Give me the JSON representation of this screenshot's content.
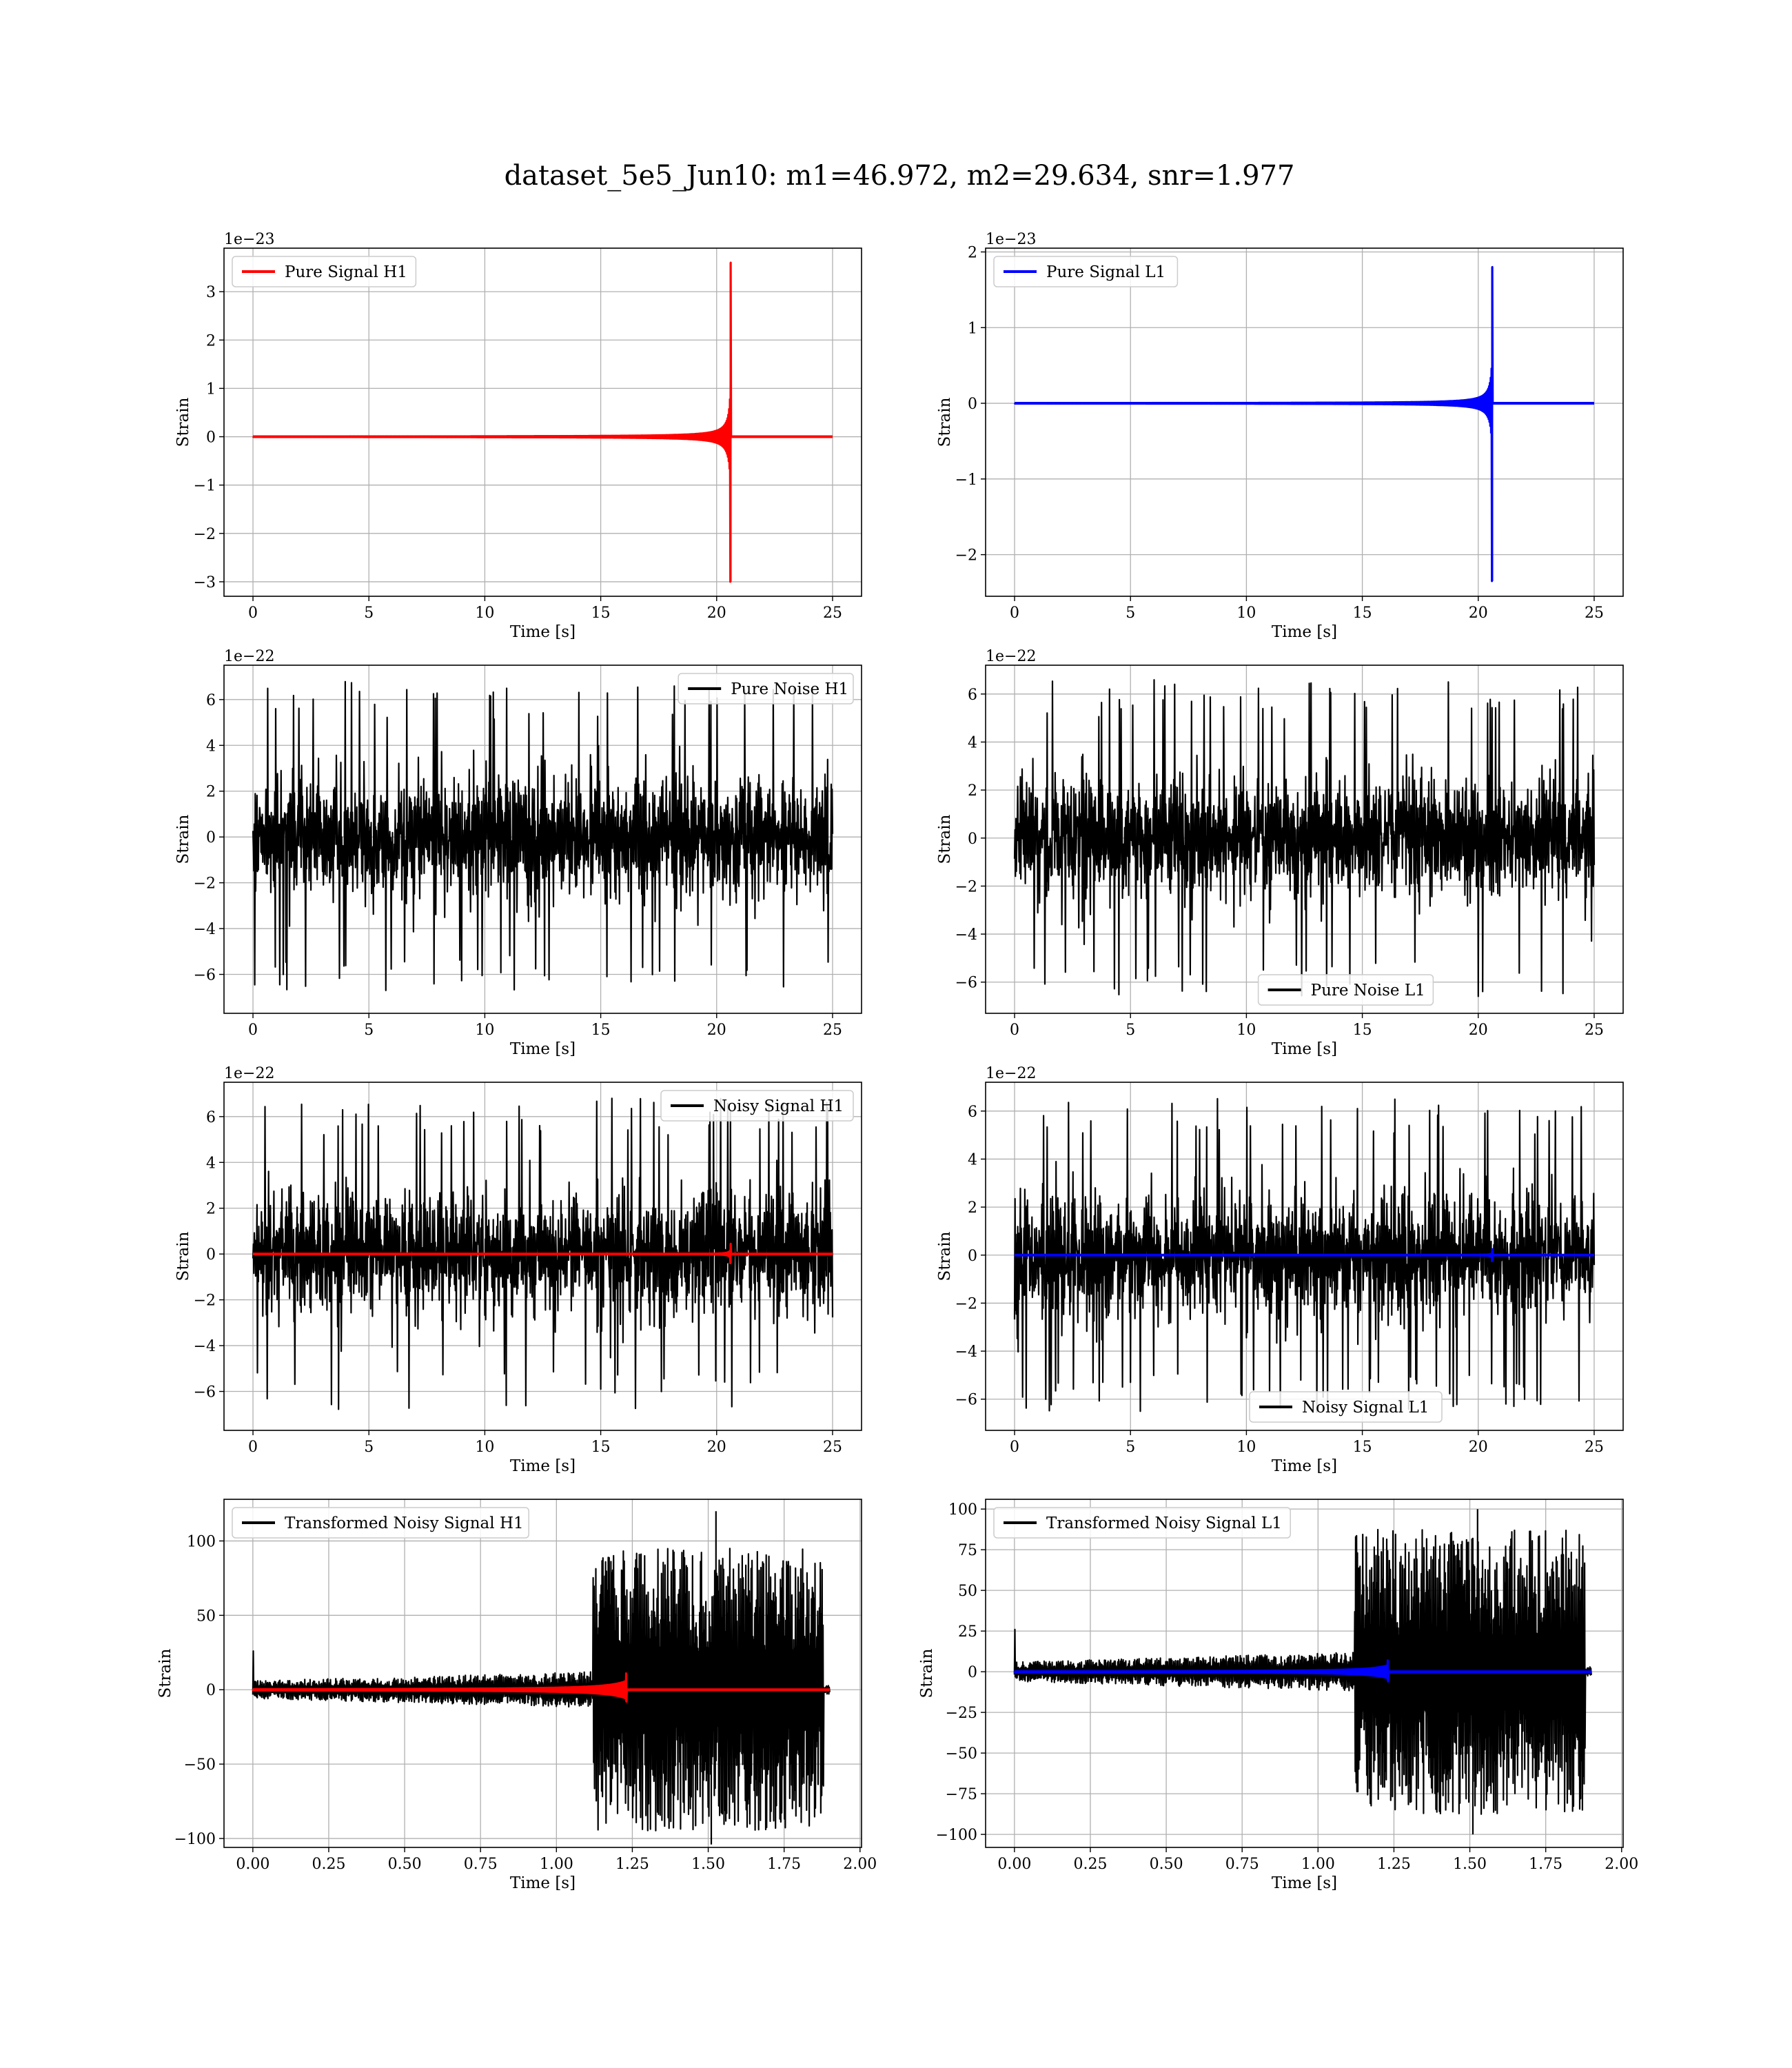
{
  "figure": {
    "suptitle": "dataset_5e5_Jun10: m1=46.972, m2=29.634, snr=1.977"
  },
  "colors": {
    "h1": "#ff0000",
    "l1": "#0000ff",
    "noise": "#000000",
    "grid": "#b0b0b0"
  },
  "chart_data": [
    {
      "type": "line",
      "panel": "pure-signal-h1",
      "xlabel": "Time [s]",
      "ylabel": "Strain",
      "offset_text": "1e−23",
      "xlim": [
        -1.25,
        26.25
      ],
      "ylim": [
        -3.3,
        3.9
      ],
      "xticks": [
        0,
        5,
        10,
        15,
        20,
        25
      ],
      "xtick_labels": [
        "0",
        "5",
        "10",
        "15",
        "20",
        "25"
      ],
      "yticks": [
        -3,
        -2,
        -1,
        0,
        1,
        2,
        3
      ],
      "ytick_labels": [
        "−3",
        "−2",
        "−1",
        "0",
        "1",
        "2",
        "3"
      ],
      "grid": true,
      "legend_position": "upper left",
      "series": [
        {
          "name": "Pure Signal H1",
          "kind": "chirp",
          "color": "#ff0000",
          "duration": 25,
          "merger": 20.6,
          "amp": 1.1,
          "peak_pos": 3.6,
          "peak_neg": -3.0,
          "noise_amp": 0,
          "in_legend": true
        }
      ]
    },
    {
      "type": "line",
      "panel": "pure-signal-l1",
      "xlabel": "Time [s]",
      "ylabel": "Strain",
      "offset_text": "1e−23",
      "xlim": [
        -1.25,
        26.25
      ],
      "ylim": [
        -2.55,
        2.05
      ],
      "xticks": [
        0,
        5,
        10,
        15,
        20,
        25
      ],
      "xtick_labels": [
        "0",
        "5",
        "10",
        "15",
        "20",
        "25"
      ],
      "yticks": [
        -2,
        -1,
        0,
        1,
        2
      ],
      "ytick_labels": [
        "−2",
        "−1",
        "0",
        "1",
        "2"
      ],
      "grid": true,
      "legend_position": "upper left",
      "series": [
        {
          "name": "Pure Signal L1",
          "kind": "chirp",
          "color": "#0000ff",
          "duration": 25,
          "merger": 20.6,
          "amp": 0.65,
          "peak_pos": 1.8,
          "peak_neg": -2.35,
          "noise_amp": 0,
          "in_legend": true
        }
      ]
    },
    {
      "type": "line",
      "panel": "pure-noise-h1",
      "xlabel": "Time [s]",
      "ylabel": "Strain",
      "offset_text": "1e−22",
      "xlim": [
        -1.25,
        26.25
      ],
      "ylim": [
        -7.7,
        7.5
      ],
      "xticks": [
        0,
        5,
        10,
        15,
        20,
        25
      ],
      "xtick_labels": [
        "0",
        "5",
        "10",
        "15",
        "20",
        "25"
      ],
      "yticks": [
        -6,
        -4,
        -2,
        0,
        2,
        4,
        6
      ],
      "ytick_labels": [
        "−6",
        "−4",
        "−2",
        "0",
        "2",
        "4",
        "6"
      ],
      "grid": true,
      "legend_position": "upper right",
      "series": [
        {
          "name": "Pure Noise H1",
          "kind": "noise",
          "color": "#000000",
          "duration": 25,
          "noise_amp": 6.8,
          "in_legend": true
        }
      ]
    },
    {
      "type": "line",
      "panel": "pure-noise-l1",
      "xlabel": "Time [s]",
      "ylabel": "Strain",
      "offset_text": "1e−22",
      "xlim": [
        -1.25,
        26.25
      ],
      "ylim": [
        -7.3,
        7.2
      ],
      "xticks": [
        0,
        5,
        10,
        15,
        20,
        25
      ],
      "xtick_labels": [
        "0",
        "5",
        "10",
        "15",
        "20",
        "25"
      ],
      "yticks": [
        -6,
        -4,
        -2,
        0,
        2,
        4,
        6
      ],
      "ytick_labels": [
        "−6",
        "−4",
        "−2",
        "0",
        "2",
        "4",
        "6"
      ],
      "grid": true,
      "legend_position": "lower center",
      "series": [
        {
          "name": "Pure Noise L1",
          "kind": "noise",
          "color": "#000000",
          "duration": 25,
          "noise_amp": 6.6,
          "in_legend": true
        }
      ]
    },
    {
      "type": "line",
      "panel": "noisy-signal-h1",
      "xlabel": "Time [s]",
      "ylabel": "Strain",
      "offset_text": "1e−22",
      "xlim": [
        -1.25,
        26.25
      ],
      "ylim": [
        -7.7,
        7.5
      ],
      "xticks": [
        0,
        5,
        10,
        15,
        20,
        25
      ],
      "xtick_labels": [
        "0",
        "5",
        "10",
        "15",
        "20",
        "25"
      ],
      "yticks": [
        -6,
        -4,
        -2,
        0,
        2,
        4,
        6
      ],
      "ytick_labels": [
        "−6",
        "−4",
        "−2",
        "0",
        "2",
        "4",
        "6"
      ],
      "grid": true,
      "legend_position": "upper right",
      "series": [
        {
          "name": "Noisy Signal H1",
          "kind": "noise",
          "color": "#000000",
          "duration": 25,
          "noise_amp": 6.8,
          "in_legend": true
        },
        {
          "name": "",
          "kind": "chirp",
          "color": "#ff0000",
          "duration": 25,
          "merger": 20.6,
          "amp": 0.2,
          "peak_pos": 0.45,
          "peak_neg": -0.4,
          "noise_amp": 0,
          "in_legend": false
        }
      ]
    },
    {
      "type": "line",
      "panel": "noisy-signal-l1",
      "xlabel": "Time [s]",
      "ylabel": "Strain",
      "offset_text": "1e−22",
      "xlim": [
        -1.25,
        26.25
      ],
      "ylim": [
        -7.3,
        7.2
      ],
      "xticks": [
        0,
        5,
        10,
        15,
        20,
        25
      ],
      "xtick_labels": [
        "0",
        "5",
        "10",
        "15",
        "20",
        "25"
      ],
      "yticks": [
        -6,
        -4,
        -2,
        0,
        2,
        4,
        6
      ],
      "ytick_labels": [
        "−6",
        "−4",
        "−2",
        "0",
        "2",
        "4",
        "6"
      ],
      "grid": true,
      "legend_position": "lower center",
      "series": [
        {
          "name": "Noisy Signal L1",
          "kind": "noise",
          "color": "#000000",
          "duration": 25,
          "noise_amp": 6.6,
          "in_legend": true
        },
        {
          "name": "",
          "kind": "chirp",
          "color": "#0000ff",
          "duration": 25,
          "merger": 20.6,
          "amp": 0.1,
          "peak_pos": 0.25,
          "peak_neg": -0.25,
          "noise_amp": 0,
          "in_legend": false
        }
      ]
    },
    {
      "type": "line",
      "panel": "transformed-noisy-signal-h1",
      "xlabel": "Time [s]",
      "ylabel": "Strain",
      "offset_text": "",
      "xlim": [
        -0.095,
        2.005
      ],
      "ylim": [
        -106,
        128
      ],
      "xticks": [
        0,
        0.25,
        0.5,
        0.75,
        1.0,
        1.25,
        1.5,
        1.75,
        2.0
      ],
      "xtick_labels": [
        "0.00",
        "0.25",
        "0.50",
        "0.75",
        "1.00",
        "1.25",
        "1.50",
        "1.75",
        "2.00"
      ],
      "yticks": [
        -100,
        -50,
        0,
        50,
        100
      ],
      "ytick_labels": [
        "−100",
        "−50",
        "0",
        "50",
        "100"
      ],
      "grid": true,
      "legend_position": "upper left",
      "series": [
        {
          "name": "Transformed Noisy Signal H1",
          "kind": "whitened",
          "color": "#000000",
          "duration": 1.9,
          "jump_at": 1.12,
          "pre_amp": 10,
          "post_amp": 95,
          "peak": 120,
          "trough": -104,
          "in_legend": true
        },
        {
          "name": "",
          "kind": "chirp",
          "color": "#ff0000",
          "duration": 1.9,
          "merger": 1.23,
          "amp": 6,
          "peak_pos": 11,
          "peak_neg": -8,
          "noise_amp": 0,
          "in_legend": false
        }
      ]
    },
    {
      "type": "line",
      "panel": "transformed-noisy-signal-l1",
      "xlabel": "Time [s]",
      "ylabel": "Strain",
      "offset_text": "",
      "xlim": [
        -0.095,
        2.005
      ],
      "ylim": [
        -108,
        106
      ],
      "xticks": [
        0,
        0.25,
        0.5,
        0.75,
        1.0,
        1.25,
        1.5,
        1.75,
        2.0
      ],
      "xtick_labels": [
        "0.00",
        "0.25",
        "0.50",
        "0.75",
        "1.00",
        "1.25",
        "1.50",
        "1.75",
        "2.00"
      ],
      "yticks": [
        -100,
        -75,
        -50,
        -25,
        0,
        25,
        50,
        75,
        100
      ],
      "ytick_labels": [
        "−100",
        "−75",
        "−50",
        "−25",
        "0",
        "25",
        "50",
        "75",
        "100"
      ],
      "grid": true,
      "legend_position": "upper left",
      "series": [
        {
          "name": "Transformed Noisy Signal L1",
          "kind": "whitened",
          "color": "#000000",
          "duration": 1.9,
          "jump_at": 1.12,
          "pre_amp": 10,
          "post_amp": 88,
          "peak": 100,
          "trough": -100,
          "in_legend": true
        },
        {
          "name": "",
          "kind": "chirp",
          "color": "#0000ff",
          "duration": 1.9,
          "merger": 1.23,
          "amp": 4,
          "peak_pos": 7,
          "peak_neg": -6,
          "noise_amp": 0,
          "in_legend": false
        }
      ]
    }
  ]
}
